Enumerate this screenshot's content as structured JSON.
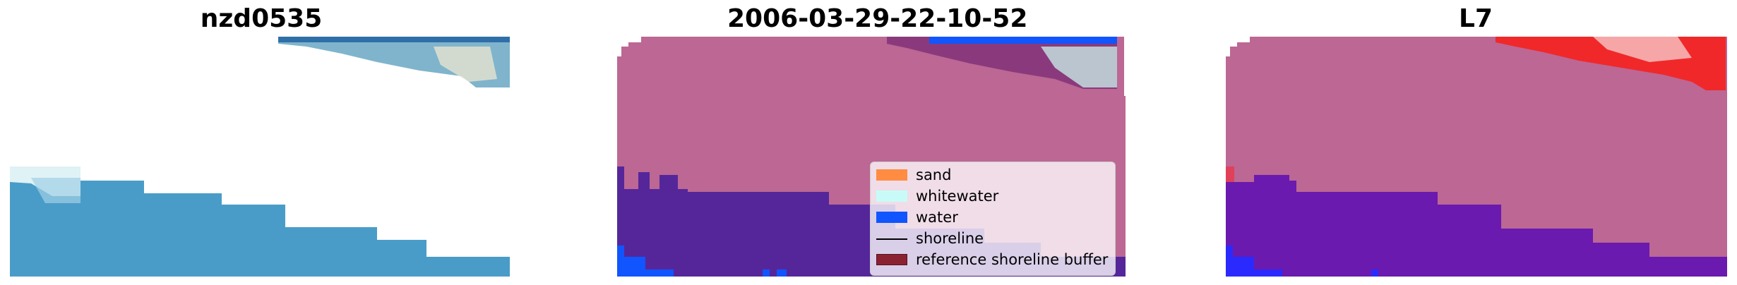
{
  "panels": [
    {
      "title": "nzd0535"
    },
    {
      "title": "2006-03-29-22-10-52"
    },
    {
      "title": "L7"
    }
  ],
  "legend": {
    "items": [
      {
        "label": "sand",
        "color": "#ff8c42"
      },
      {
        "label": "whitewater",
        "color": "#c8fbf8"
      },
      {
        "label": "water",
        "color": "#1155ff"
      },
      {
        "label": "shoreline",
        "color": "#000000"
      },
      {
        "label": "reference shoreline buffer",
        "color": "#8b2232"
      }
    ]
  },
  "colors": {
    "class_land": "#bc6794",
    "class_water": "#55269a",
    "water_blue": "#2a5fff",
    "ocean_rgb": "#4a9cc8",
    "ref_buffer_red": "#f0282a"
  }
}
